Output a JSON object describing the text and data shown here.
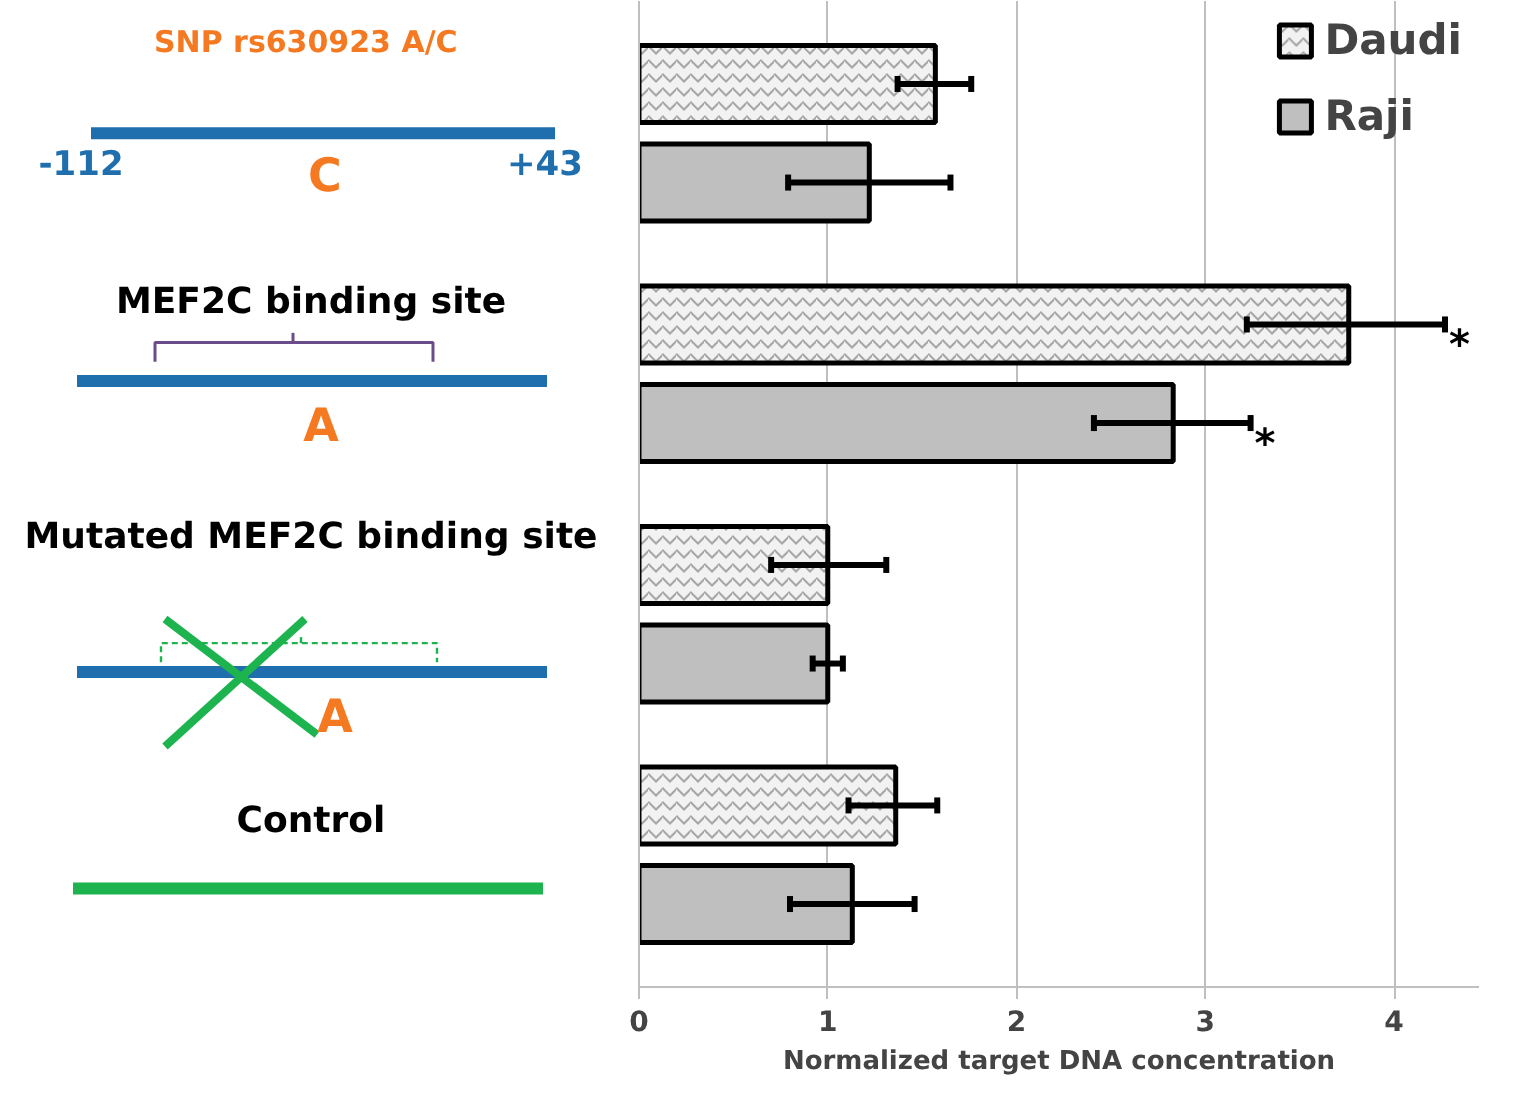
{
  "chart_data": {
    "type": "bar",
    "orientation": "horizontal",
    "categories": [
      "SNP rs630923  A/C",
      "MEF2C binding site",
      "Mutated MEF2C binding site",
      "Control"
    ],
    "series": [
      {
        "name": "Daudi",
        "color": "#f2f2f2",
        "values": [
          1.57,
          3.76,
          1.0,
          1.36
        ],
        "errors": [
          [
            1.37,
            1.76
          ],
          [
            3.22,
            4.27
          ],
          [
            0.7,
            1.31
          ],
          [
            1.11,
            1.58
          ]
        ]
      },
      {
        "name": "Raji",
        "color": "#bfbfbf",
        "values": [
          1.22,
          2.83,
          1.0,
          1.13
        ],
        "errors": [
          [
            0.79,
            1.65
          ],
          [
            2.41,
            3.24
          ],
          [
            0.92,
            1.08
          ],
          [
            0.8,
            1.46
          ]
        ]
      }
    ],
    "xlabel": "Normalized target DNA concentration",
    "xlim": [
      0,
      4.45
    ],
    "xticks": [
      0,
      1,
      2,
      3,
      4
    ],
    "grid": "x",
    "legend": "top right",
    "tick_labels": "x",
    "annotations": [
      "-112",
      "+43",
      "C",
      "A",
      "A",
      "*",
      "*"
    ]
  }
}
